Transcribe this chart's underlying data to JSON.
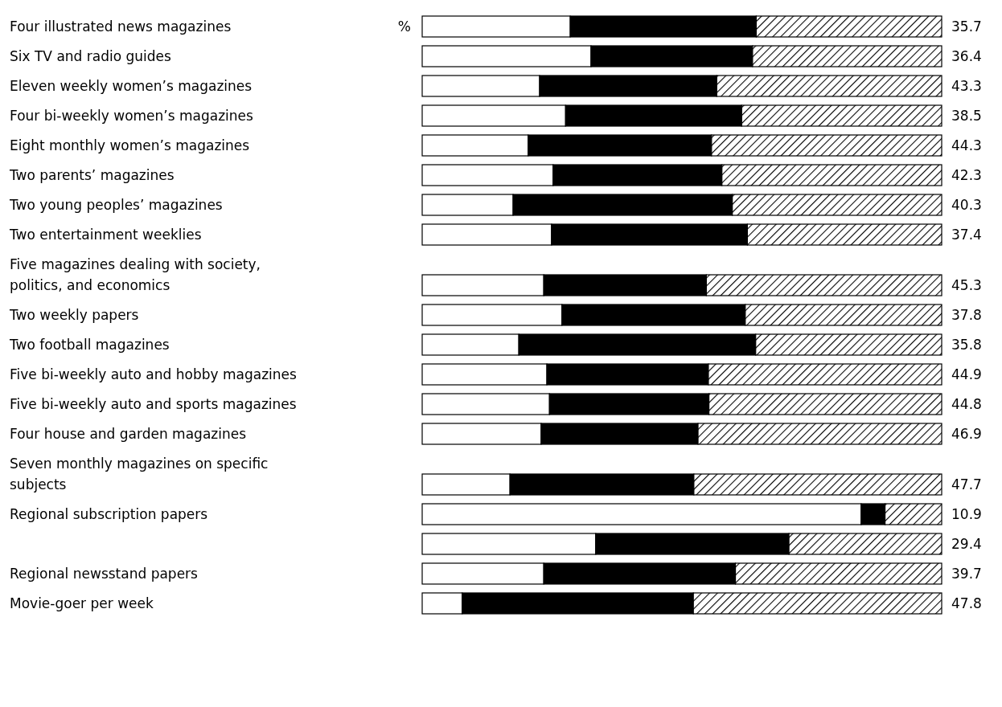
{
  "chart_data": {
    "type": "bar",
    "orientation": "horizontal",
    "stacked": true,
    "categories": [
      "Four illustrated news magazines",
      "Six TV and radio guides",
      "Eleven weekly women’s magazines",
      "Four bi-weekly women’s magazines",
      "Eight monthly women’s magazines",
      "Two parents’ magazines",
      "Two young peoples’ magazines",
      "Two entertainment weeklies",
      "Five magazines dealing with society, politics, and economics",
      "Two weekly papers",
      "Two football magazines",
      "Five bi-weekly auto and hobby magazines",
      "Five bi-weekly auto and sports magazines",
      "Four house and garden magazines",
      "Seven monthly magazines on specific subjects",
      "Regional subscription papers",
      null,
      "Regional newsstand papers",
      "Movie-goer per week"
    ],
    "series": [
      {
        "color": "#ffffff",
        "values": [
          28.5,
          32.5,
          22.6,
          27.6,
          20.4,
          25.2,
          17.5,
          24.9,
          23.4,
          26.9,
          18.6,
          24.0,
          24.5,
          22.9,
          16.9,
          84.5,
          33.4,
          23.4,
          7.7
        ]
      },
      {
        "color": "#000000",
        "values": [
          35.8,
          31.1,
          34.1,
          33.9,
          35.3,
          32.5,
          42.2,
          37.7,
          31.3,
          35.3,
          45.6,
          31.1,
          30.7,
          30.2,
          35.4,
          4.6,
          37.2,
          36.9,
          44.5
        ]
      },
      {
        "color": "#000000",
        "values": [
          35.7,
          36.4,
          43.3,
          38.5,
          44.3,
          42.3,
          40.3,
          37.4,
          45.3,
          37.8,
          35.8,
          44.9,
          44.8,
          46.9,
          47.7,
          10.9,
          29.4,
          39.7,
          47.8
        ],
        "value_labels": [
          "35.7",
          "36.4",
          "43.3",
          "38.5",
          "44.3",
          "42.3",
          "40.3",
          "37.4",
          "45.3",
          "37.8",
          "35.8",
          "44.9",
          "44.8",
          "46.9",
          "47.7",
          "10.9",
          "29.4",
          "39.7",
          "47.8"
        ]
      }
    ],
    "annotations": [
      "%"
    ]
  }
}
